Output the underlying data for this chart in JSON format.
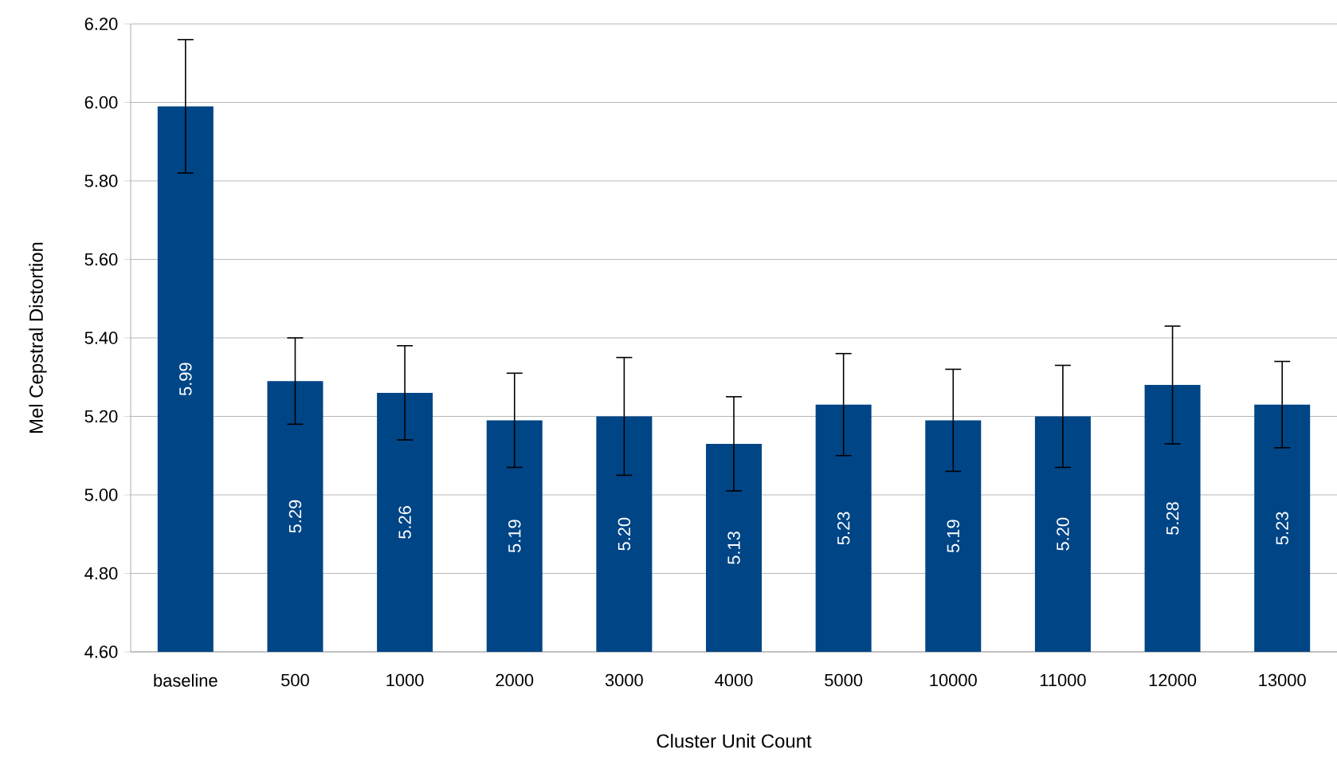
{
  "chart_data": {
    "type": "bar",
    "xlabel": "Cluster Unit Count",
    "ylabel": "Mel Cepstral Distortion",
    "categories": [
      "baseline",
      "500",
      "1000",
      "2000",
      "3000",
      "4000",
      "5000",
      "10000",
      "11000",
      "12000",
      "13000"
    ],
    "values": [
      5.99,
      5.29,
      5.26,
      5.19,
      5.2,
      5.13,
      5.23,
      5.19,
      5.2,
      5.28,
      5.23
    ],
    "errors": [
      0.17,
      0.11,
      0.12,
      0.12,
      0.15,
      0.12,
      0.13,
      0.13,
      0.13,
      0.15,
      0.11
    ],
    "value_labels": [
      "5.99",
      "5.29",
      "5.26",
      "5.19",
      "5.20",
      "5.13",
      "5.23",
      "5.19",
      "5.20",
      "5.28",
      "5.23"
    ],
    "color": "#004586",
    "ylim": [
      4.6,
      6.2
    ],
    "yticks": [
      {
        "value": 4.6,
        "label": "4.60"
      },
      {
        "value": 4.8,
        "label": "4.80"
      },
      {
        "value": 5.0,
        "label": "5.00"
      },
      {
        "value": 5.2,
        "label": "5.20"
      },
      {
        "value": 5.4,
        "label": "5.40"
      },
      {
        "value": 5.6,
        "label": "5.60"
      },
      {
        "value": 5.8,
        "label": "5.80"
      },
      {
        "value": 6.0,
        "label": "6.00"
      },
      {
        "value": 6.2,
        "label": "6.20"
      }
    ],
    "grid": "y"
  }
}
